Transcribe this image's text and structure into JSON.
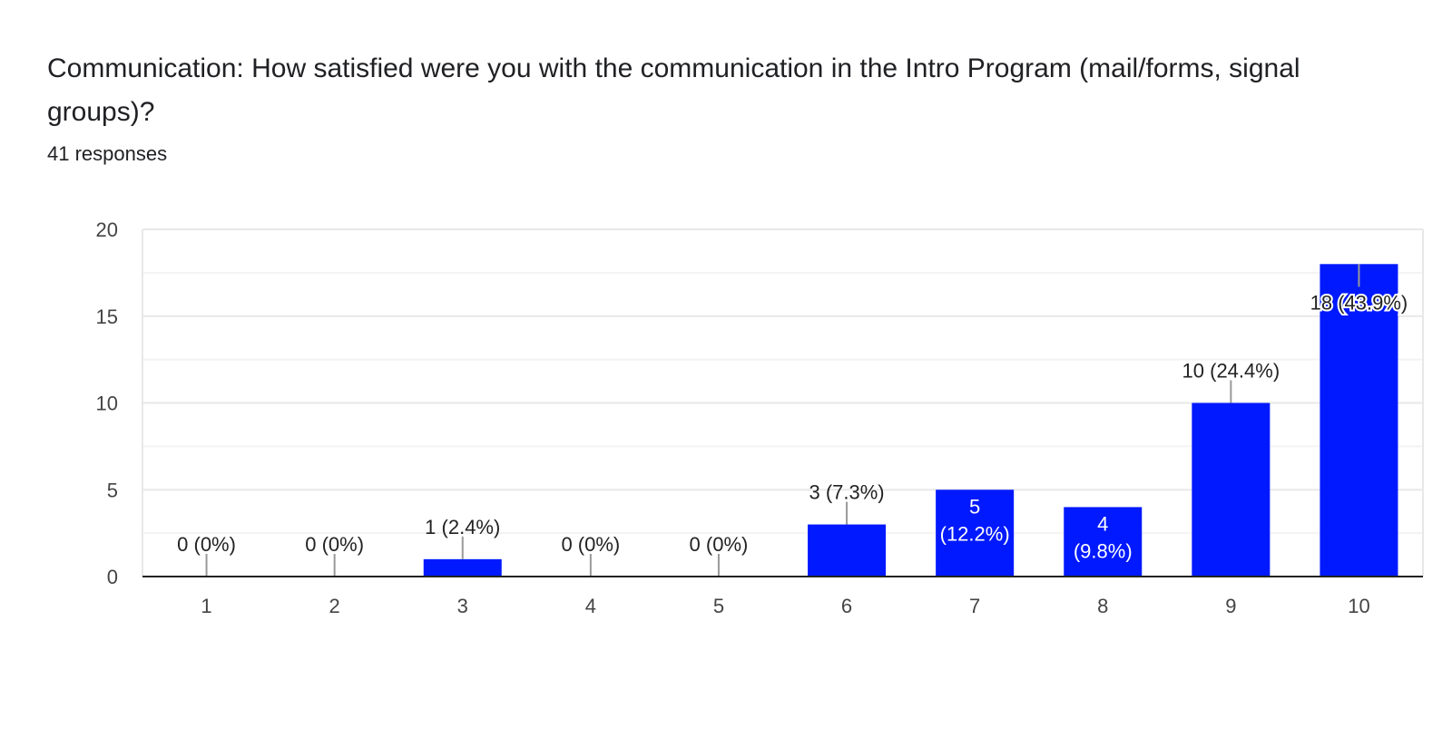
{
  "question": "Communication: How satisfied were you with the communication in the Intro Program (mail/forms, signal groups)?",
  "responses": "41 responses",
  "chart_data": {
    "type": "bar",
    "categories": [
      "1",
      "2",
      "3",
      "4",
      "5",
      "6",
      "7",
      "8",
      "9",
      "10"
    ],
    "values": [
      0,
      0,
      1,
      0,
      0,
      3,
      5,
      4,
      10,
      18
    ],
    "data_labels": [
      "0 (0%)",
      "0 (0%)",
      "1 (2.4%)",
      "0 (0%)",
      "0 (0%)",
      "3 (7.3%)",
      "5 (12.2%)",
      "4 (9.8%)",
      "10 (24.4%)",
      "18 (43.9%)"
    ],
    "yticks": [
      "0",
      "5",
      "10",
      "15",
      "20"
    ],
    "ylim": [
      0,
      20
    ],
    "grid": true,
    "bar_color": "#0019ff",
    "title": "",
    "xlabel": "",
    "ylabel": ""
  }
}
